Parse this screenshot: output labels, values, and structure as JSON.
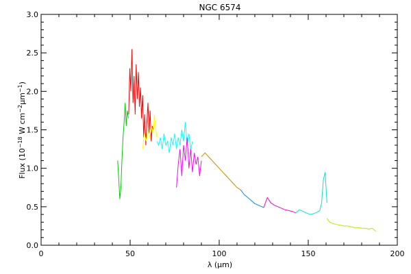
{
  "chart_data": {
    "type": "line",
    "title": "NGC 6574",
    "xlabel": "λ (μm)",
    "ylabel": {
      "base": "Flux (10",
      "exp1": "−18",
      "mid": " W cm",
      "exp2": "−2",
      "mu": "μm",
      "exp3": "−1",
      "end": ")"
    },
    "xlim": [
      0,
      200
    ],
    "ylim": [
      0.0,
      3.0
    ],
    "xticks": [
      0,
      50,
      100,
      150,
      200
    ],
    "xtick_labels": [
      "0",
      "50",
      "100",
      "150",
      "200"
    ],
    "yticks": [
      0.0,
      0.5,
      1.0,
      1.5,
      2.0,
      2.5,
      3.0
    ],
    "ytick_labels": [
      "0.0",
      "0.5",
      "1.0",
      "1.5",
      "2.0",
      "2.5",
      "3.0"
    ],
    "grid": false,
    "series": [
      {
        "color": "#00cc00",
        "x": [
          43.0,
          43.6,
          44.2,
          44.8,
          45.4,
          46.0,
          46.6,
          47.2,
          47.8,
          48.4,
          49.0
        ],
        "y": [
          1.1,
          0.85,
          0.6,
          0.75,
          1.1,
          1.4,
          1.6,
          1.85,
          1.55,
          1.75,
          1.65
        ]
      },
      {
        "color": "#ff0000",
        "x": [
          49.2,
          49.8,
          50.4,
          51.0,
          51.6,
          52.2,
          52.8,
          53.4,
          54.0,
          54.6,
          55.2,
          55.8,
          56.4,
          57.0,
          57.6,
          58.2,
          58.8,
          59.4,
          60.0,
          60.6,
          61.2,
          61.8,
          62.4,
          63.0
        ],
        "y": [
          1.7,
          2.3,
          2.0,
          2.55,
          1.85,
          2.2,
          1.7,
          2.35,
          1.9,
          2.25,
          1.8,
          2.05,
          1.65,
          1.95,
          1.4,
          1.7,
          1.3,
          1.6,
          1.85,
          1.45,
          1.75,
          1.35,
          1.55,
          1.5
        ]
      },
      {
        "color": "#ffff00",
        "x": [
          57.0,
          58.0,
          59.0,
          60.0,
          61.0,
          62.0,
          63.0,
          63.6,
          64.2,
          65.0
        ],
        "y": [
          1.25,
          1.45,
          1.35,
          1.5,
          1.4,
          1.55,
          1.45,
          1.7,
          1.55,
          1.4
        ]
      },
      {
        "color": "#00ffff",
        "x": [
          65.0,
          66.0,
          67.0,
          68.0,
          69.0,
          70.0,
          71.0,
          72.0,
          73.0,
          74.0,
          75.0,
          76.0,
          77.0,
          78.0,
          79.0,
          80.0,
          81.0,
          82.0,
          83.0,
          84.0,
          85.0
        ],
        "y": [
          1.35,
          1.3,
          1.4,
          1.25,
          1.45,
          1.3,
          1.35,
          1.2,
          1.4,
          1.3,
          1.45,
          1.25,
          1.4,
          1.3,
          1.5,
          1.35,
          1.6,
          1.3,
          1.45,
          1.25,
          1.35
        ]
      },
      {
        "color": "#ff00ff",
        "x": [
          76.0,
          77.0,
          78.0,
          79.0,
          80.0,
          81.0,
          82.0,
          83.0,
          84.0,
          85.0,
          86.0,
          87.0,
          88.0,
          89.0,
          90.0
        ],
        "y": [
          0.75,
          1.05,
          1.25,
          0.9,
          1.3,
          1.1,
          1.4,
          1.0,
          1.25,
          0.95,
          1.2,
          1.05,
          1.15,
          0.9,
          1.1
        ]
      },
      {
        "color": "#cc8800",
        "x": [
          90.0,
          92.0,
          94.0,
          96.0,
          98.0,
          100.0,
          102.0,
          104.0,
          106.0,
          108.0,
          110.0,
          112.0
        ],
        "y": [
          1.15,
          1.2,
          1.15,
          1.1,
          1.05,
          1.0,
          0.95,
          0.9,
          0.85,
          0.8,
          0.75,
          0.72
        ]
      },
      {
        "color": "#0088ff",
        "x": [
          112.0,
          114.0,
          116.0,
          118.0,
          120.0,
          122.0,
          124.0,
          125.0
        ],
        "y": [
          0.72,
          0.66,
          0.62,
          0.58,
          0.54,
          0.52,
          0.5,
          0.49
        ]
      },
      {
        "color": "#ff00cc",
        "x": [
          125.0,
          127.0,
          129.0,
          131.0,
          133.0,
          135.0,
          137.0,
          139.0,
          141.0,
          143.0
        ],
        "y": [
          0.49,
          0.62,
          0.55,
          0.52,
          0.5,
          0.48,
          0.46,
          0.45,
          0.44,
          0.42
        ]
      },
      {
        "color": "#00e5cc",
        "x": [
          143.0,
          145.0,
          147.0,
          149.0,
          151.0,
          153.0,
          155.0,
          156.5,
          157.5,
          158.5,
          159.5,
          160.5
        ],
        "y": [
          0.42,
          0.46,
          0.44,
          0.42,
          0.4,
          0.41,
          0.43,
          0.45,
          0.55,
          0.85,
          0.95,
          0.55
        ]
      },
      {
        "color": "#aaee00",
        "x": [
          160.5,
          162.0,
          164.0,
          166.0,
          168.0,
          170.0,
          172.0,
          174.0,
          176.0,
          178.0,
          180.0,
          182.0,
          184.0,
          186.0,
          188.0
        ],
        "y": [
          0.35,
          0.3,
          0.28,
          0.27,
          0.26,
          0.25,
          0.25,
          0.24,
          0.23,
          0.23,
          0.22,
          0.22,
          0.21,
          0.22,
          0.18
        ]
      }
    ]
  }
}
